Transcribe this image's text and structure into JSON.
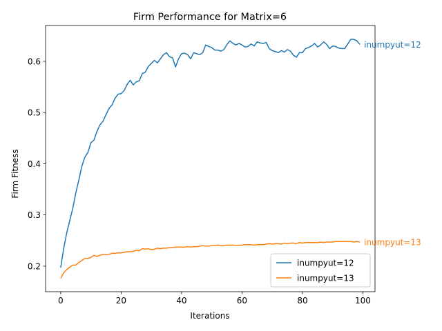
{
  "chart_data": {
    "type": "line",
    "title": "Firm Performance for Matrix=6",
    "xlabel": "Iterations",
    "ylabel": "Firm Fitness",
    "xlim": [
      -5,
      104
    ],
    "ylim": [
      0.15,
      0.67
    ],
    "xticks": [
      0,
      20,
      40,
      60,
      80,
      100
    ],
    "yticks": [
      0.2,
      0.3,
      0.4,
      0.5,
      0.6
    ],
    "ytick_labels": [
      "0.2",
      "0.3",
      "0.4",
      "0.5",
      "0.6"
    ],
    "legend_position": "lower-right",
    "series": [
      {
        "name": "inumpyut=12",
        "color": "#1f77b4",
        "end_label": "inumpyut=12",
        "values": [
          0.197,
          0.235,
          0.265,
          0.289,
          0.313,
          0.343,
          0.368,
          0.395,
          0.413,
          0.422,
          0.441,
          0.446,
          0.463,
          0.476,
          0.483,
          0.496,
          0.508,
          0.515,
          0.528,
          0.536,
          0.537,
          0.543,
          0.555,
          0.563,
          0.554,
          0.56,
          0.562,
          0.576,
          0.579,
          0.59,
          0.596,
          0.602,
          0.597,
          0.605,
          0.613,
          0.617,
          0.609,
          0.607,
          0.589,
          0.605,
          0.615,
          0.616,
          0.613,
          0.605,
          0.617,
          0.615,
          0.613,
          0.617,
          0.632,
          0.629,
          0.627,
          0.622,
          0.622,
          0.62,
          0.623,
          0.633,
          0.64,
          0.635,
          0.632,
          0.635,
          0.632,
          0.628,
          0.629,
          0.634,
          0.63,
          0.638,
          0.636,
          0.635,
          0.637,
          0.625,
          0.621,
          0.619,
          0.617,
          0.621,
          0.618,
          0.623,
          0.62,
          0.612,
          0.608,
          0.617,
          0.617,
          0.625,
          0.627,
          0.63,
          0.635,
          0.628,
          0.632,
          0.638,
          0.633,
          0.625,
          0.63,
          0.629,
          0.626,
          0.625,
          0.625,
          0.634,
          0.643,
          0.643,
          0.64,
          0.633
        ]
      },
      {
        "name": "inumpyut=13",
        "color": "#ff7f0e",
        "end_label": "inumpyut=13",
        "values": [
          0.176,
          0.187,
          0.193,
          0.198,
          0.202,
          0.202,
          0.207,
          0.211,
          0.215,
          0.215,
          0.217,
          0.221,
          0.219,
          0.221,
          0.223,
          0.222,
          0.223,
          0.225,
          0.225,
          0.226,
          0.226,
          0.227,
          0.228,
          0.228,
          0.229,
          0.231,
          0.23,
          0.234,
          0.233,
          0.234,
          0.232,
          0.233,
          0.235,
          0.234,
          0.235,
          0.235,
          0.236,
          0.236,
          0.237,
          0.237,
          0.237,
          0.237,
          0.238,
          0.237,
          0.238,
          0.238,
          0.239,
          0.24,
          0.239,
          0.239,
          0.24,
          0.24,
          0.241,
          0.24,
          0.24,
          0.241,
          0.241,
          0.241,
          0.24,
          0.241,
          0.241,
          0.242,
          0.242,
          0.242,
          0.241,
          0.242,
          0.242,
          0.242,
          0.243,
          0.244,
          0.243,
          0.244,
          0.244,
          0.243,
          0.245,
          0.244,
          0.245,
          0.245,
          0.244,
          0.246,
          0.245,
          0.246,
          0.246,
          0.246,
          0.246,
          0.246,
          0.247,
          0.246,
          0.247,
          0.247,
          0.247,
          0.248,
          0.248,
          0.248,
          0.248,
          0.248,
          0.248,
          0.247,
          0.248,
          0.247
        ]
      }
    ]
  }
}
